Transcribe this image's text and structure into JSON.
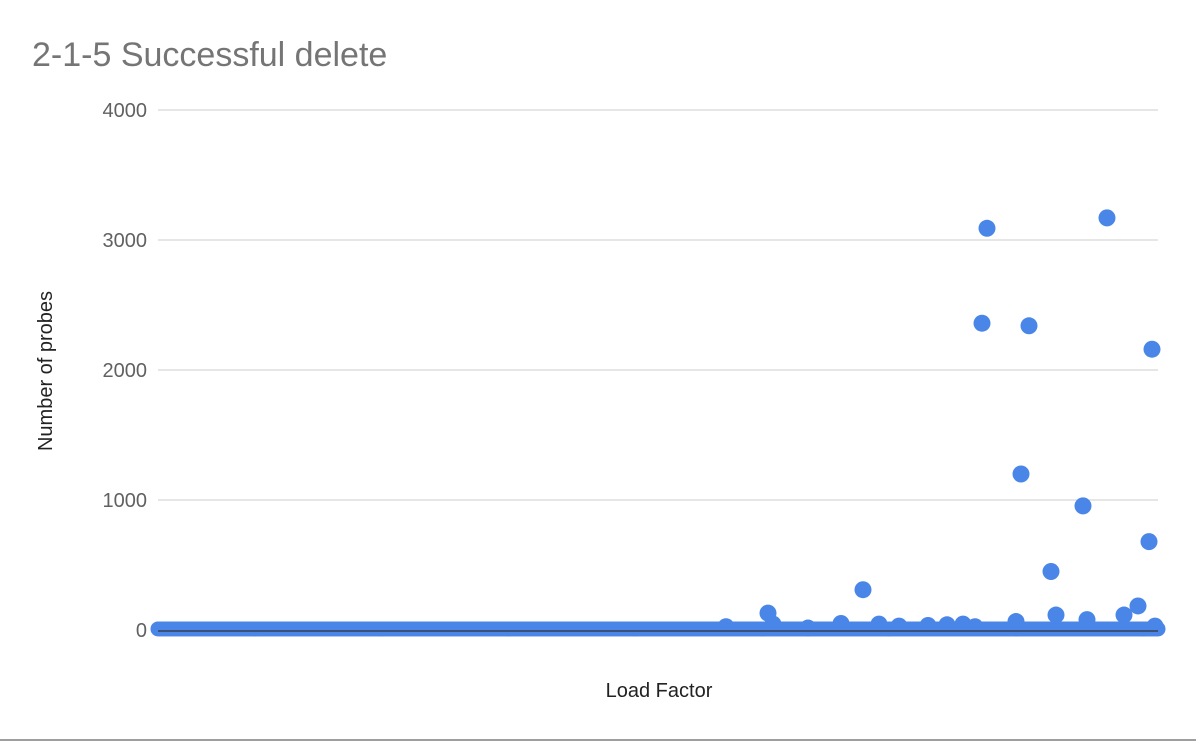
{
  "chart_data": {
    "type": "scatter",
    "title": "2-1-5 Successful delete",
    "xlabel": "Load Factor",
    "ylabel": "Number of probes",
    "xlim": [
      0,
      1
    ],
    "ylim": [
      0,
      4000
    ],
    "yticks": [
      "0",
      "1000",
      "2000",
      "3000",
      "4000"
    ],
    "grid": true,
    "legend": "none",
    "series_color": "#4a86e8",
    "baseline": {
      "x_start": 0.0,
      "x_end": 1.0,
      "step": 0.002,
      "value": 8
    },
    "points": [
      {
        "x": 0.568,
        "y": 25
      },
      {
        "x": 0.61,
        "y": 130
      },
      {
        "x": 0.615,
        "y": 45
      },
      {
        "x": 0.65,
        "y": 15
      },
      {
        "x": 0.683,
        "y": 50
      },
      {
        "x": 0.705,
        "y": 310
      },
      {
        "x": 0.721,
        "y": 45
      },
      {
        "x": 0.741,
        "y": 30
      },
      {
        "x": 0.77,
        "y": 35
      },
      {
        "x": 0.789,
        "y": 40
      },
      {
        "x": 0.805,
        "y": 45
      },
      {
        "x": 0.817,
        "y": 25
      },
      {
        "x": 0.824,
        "y": 2360
      },
      {
        "x": 0.829,
        "y": 3090
      },
      {
        "x": 0.858,
        "y": 65
      },
      {
        "x": 0.863,
        "y": 1200
      },
      {
        "x": 0.871,
        "y": 2340
      },
      {
        "x": 0.893,
        "y": 450
      },
      {
        "x": 0.898,
        "y": 115
      },
      {
        "x": 0.925,
        "y": 955
      },
      {
        "x": 0.929,
        "y": 80
      },
      {
        "x": 0.949,
        "y": 3170
      },
      {
        "x": 0.966,
        "y": 115
      },
      {
        "x": 0.98,
        "y": 185
      },
      {
        "x": 0.991,
        "y": 680
      },
      {
        "x": 0.994,
        "y": 2160
      },
      {
        "x": 0.997,
        "y": 30
      }
    ]
  }
}
